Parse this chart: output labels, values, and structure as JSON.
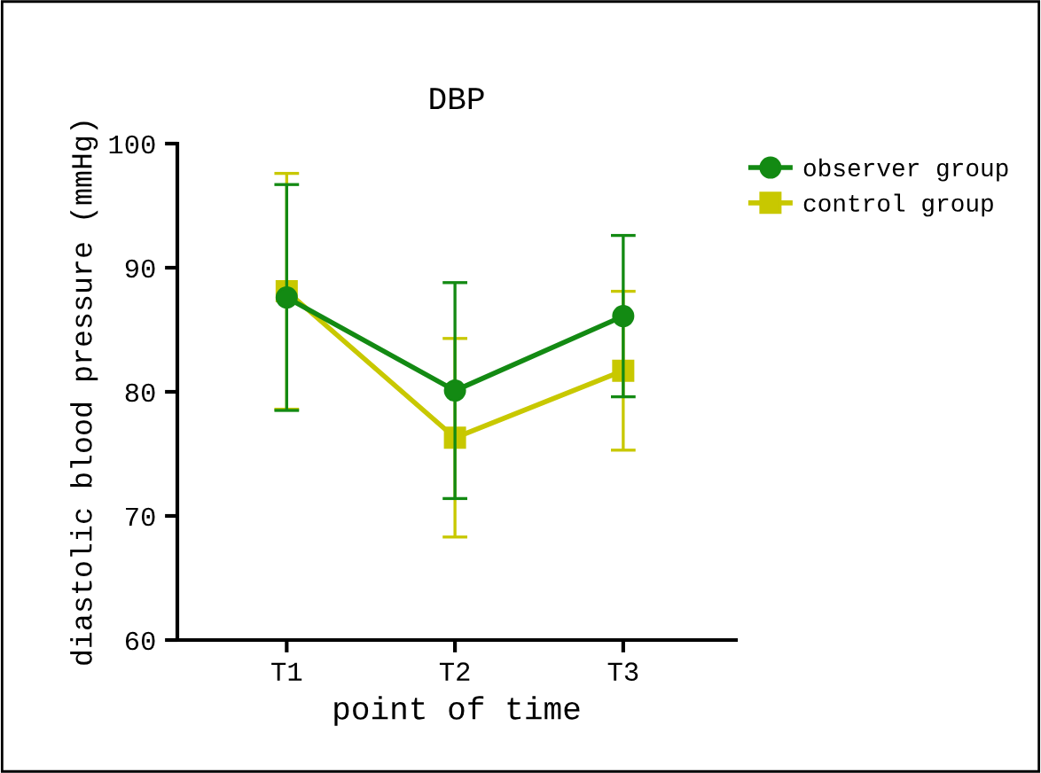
{
  "chart_data": {
    "type": "line",
    "title": "DBP",
    "xlabel": "point of time",
    "ylabel": "diastolic blood pressure (mmHg)",
    "categories": [
      "T1",
      "T2",
      "T3"
    ],
    "series": [
      {
        "name": "observer group",
        "color": "#138a13",
        "marker": "circle",
        "values": [
          87.6,
          80.1,
          86.1
        ],
        "errors": [
          9.1,
          8.7,
          6.5
        ]
      },
      {
        "name": "control group",
        "color": "#c8c800",
        "marker": "square",
        "values": [
          88.1,
          76.3,
          81.7
        ],
        "errors": [
          9.5,
          8.0,
          6.4
        ]
      }
    ],
    "ylim": [
      60,
      100
    ],
    "yticks": [
      60,
      70,
      80,
      90,
      100
    ],
    "grid": false,
    "legend": "top right"
  }
}
